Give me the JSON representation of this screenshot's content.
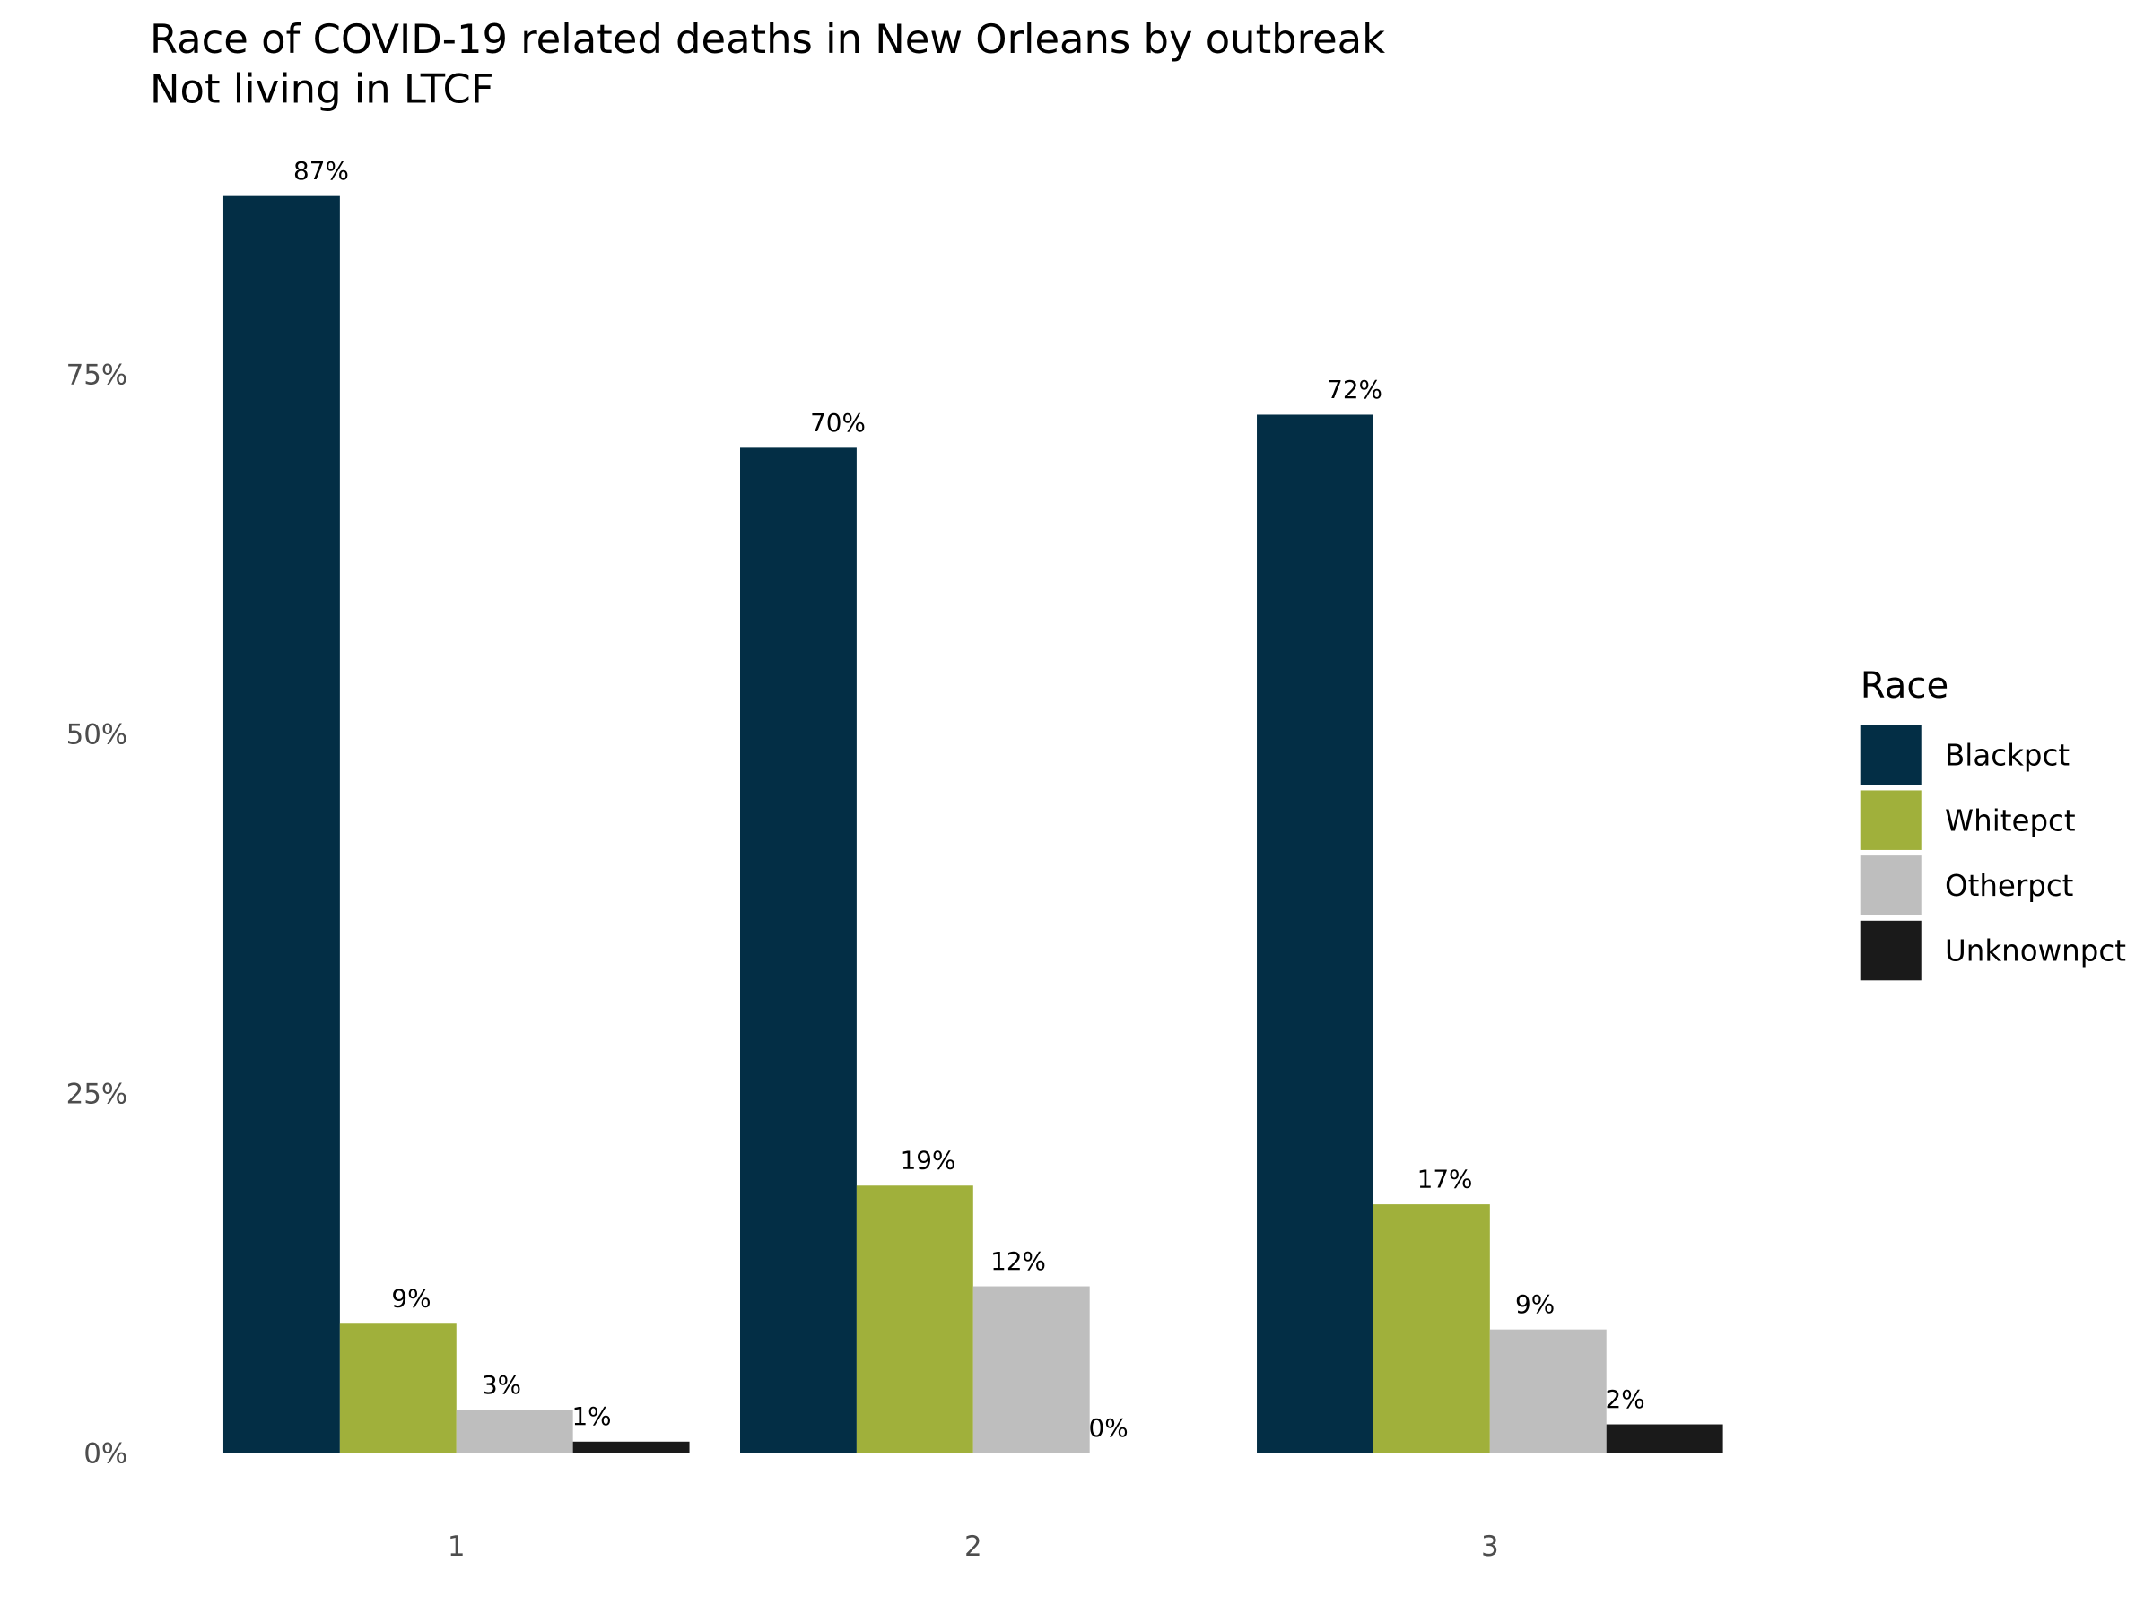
{
  "chart_data": {
    "type": "bar",
    "title": "Race of COVID-19 related deaths in New Orleans by outbreak",
    "subtitle": "Not living in LTCF",
    "xlabel": "",
    "ylabel": "",
    "categories": [
      "1",
      "2",
      "3"
    ],
    "yticks": [
      0,
      25,
      50,
      75
    ],
    "ytick_labels": [
      "0%",
      "25%",
      "50%",
      "75%"
    ],
    "ylim": [
      0,
      87.4
    ],
    "grid": false,
    "legend": {
      "title": "Race",
      "position": "right"
    },
    "series": [
      {
        "name": "Blackpct",
        "color": "#032e45",
        "values": [
          87.4,
          69.9,
          72.2
        ],
        "labels": [
          "87%",
          "70%",
          "72%"
        ]
      },
      {
        "name": "Whitepct",
        "color": "#a0b03b",
        "values": [
          9.0,
          18.6,
          17.3
        ],
        "labels": [
          "9%",
          "19%",
          "17%"
        ]
      },
      {
        "name": "Otherpct",
        "color": "#bebebe",
        "values": [
          3.0,
          11.6,
          8.6
        ],
        "labels": [
          "3%",
          "12%",
          "9%"
        ]
      },
      {
        "name": "Unknownpct",
        "color": "#1a1a1a",
        "values": [
          0.8,
          0.0,
          2.0
        ],
        "labels": [
          "1%",
          "0%",
          "2%"
        ]
      }
    ]
  }
}
